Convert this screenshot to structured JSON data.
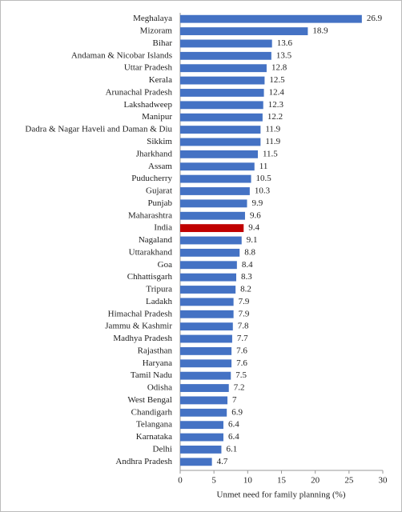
{
  "chart_data": {
    "type": "barh",
    "x_label": "Unmet need for family planning (%)",
    "categories": [
      "Meghalaya",
      "Mizoram",
      "Bihar",
      "Andaman & Nicobar Islands",
      "Uttar Pradesh",
      "Kerala",
      "Arunachal Pradesh",
      "Lakshadweep",
      "Manipur",
      "Dadra & Nagar Haveli and Daman & Diu",
      "Sikkim",
      "Jharkhand",
      "Assam",
      "Puducherry",
      "Gujarat",
      "Punjab",
      "Maharashtra",
      "India",
      "Nagaland",
      "Uttarakhand",
      "Goa",
      "Chhattisgarh",
      "Tripura",
      "Ladakh",
      "Himachal Pradesh",
      "Jammu & Kashmir",
      "Madhya Pradesh",
      "Rajasthan",
      "Haryana",
      "Tamil Nadu",
      "Odisha",
      "West Bengal",
      "Chandigarh",
      "Telangana",
      "Karnataka",
      "Delhi",
      "Andhra Pradesh"
    ],
    "values": [
      26.9,
      18.9,
      13.6,
      13.5,
      12.8,
      12.5,
      12.4,
      12.3,
      12.2,
      11.9,
      11.9,
      11.5,
      11,
      10.5,
      10.3,
      9.9,
      9.6,
      9.4,
      9.1,
      8.8,
      8.4,
      8.3,
      8.2,
      7.9,
      7.9,
      7.8,
      7.7,
      7.6,
      7.6,
      7.5,
      7.2,
      7,
      6.9,
      6.4,
      6.4,
      6.1,
      4.7
    ],
    "colors": [
      "#4472c4",
      "#4472c4",
      "#4472c4",
      "#4472c4",
      "#4472c4",
      "#4472c4",
      "#4472c4",
      "#4472c4",
      "#4472c4",
      "#4472c4",
      "#4472c4",
      "#4472c4",
      "#4472c4",
      "#4472c4",
      "#4472c4",
      "#4472c4",
      "#4472c4",
      "#c00000",
      "#4472c4",
      "#4472c4",
      "#4472c4",
      "#4472c4",
      "#4472c4",
      "#4472c4",
      "#4472c4",
      "#4472c4",
      "#4472c4",
      "#4472c4",
      "#4472c4",
      "#4472c4",
      "#4472c4",
      "#4472c4",
      "#4472c4",
      "#4472c4",
      "#4472c4",
      "#4472c4",
      "#4472c4"
    ],
    "xlim": [
      0,
      30
    ],
    "xticks": [
      0,
      5,
      10,
      15,
      20,
      25,
      30
    ],
    "grid": false
  }
}
